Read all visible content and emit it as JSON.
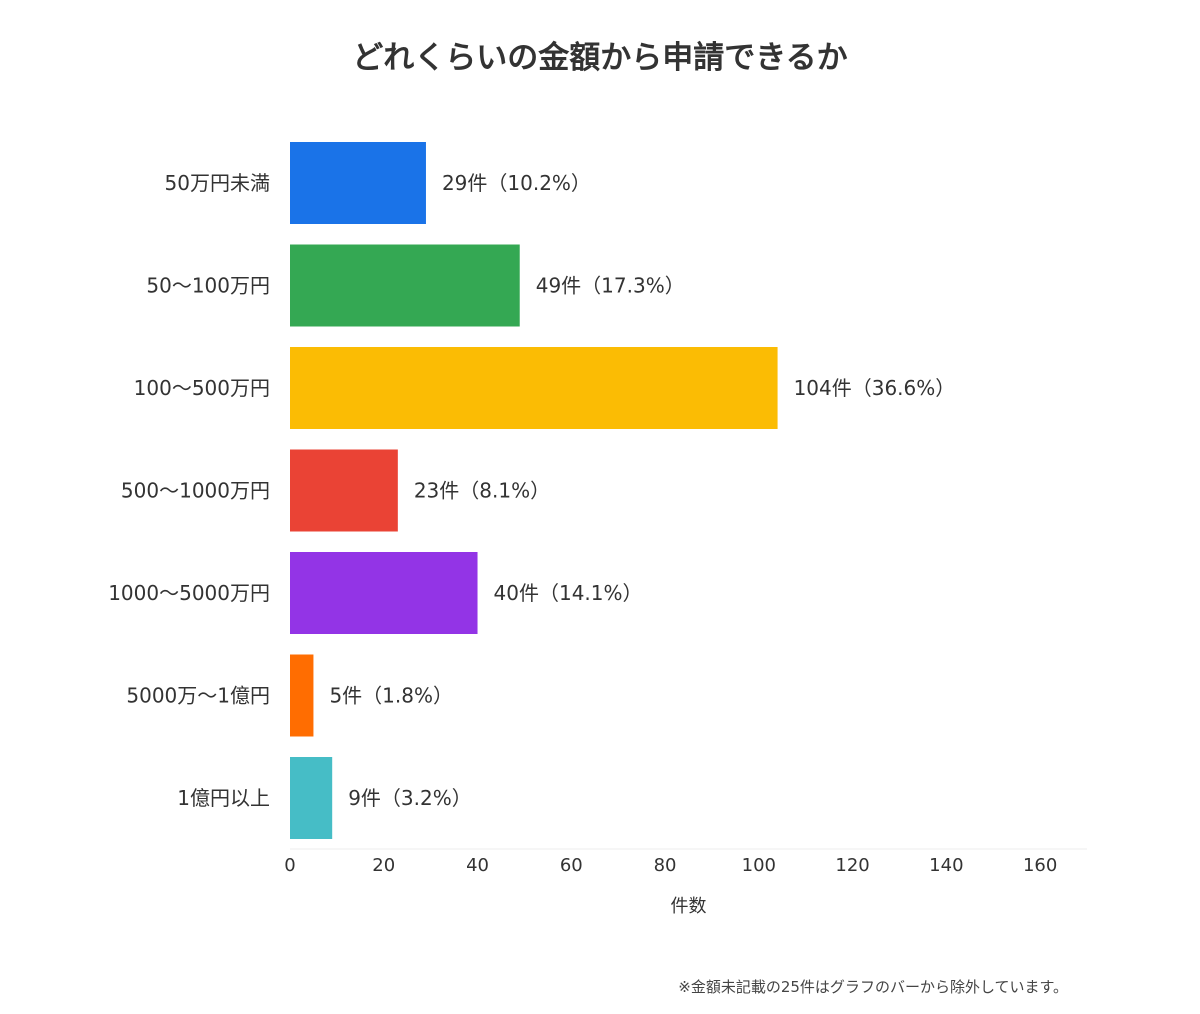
{
  "chart_data": {
    "type": "bar",
    "orientation": "horizontal",
    "title": "どれくらいの金額から申請できるか",
    "categories": [
      "50万円未満",
      "50〜100万円",
      "100〜500万円",
      "500〜1000万円",
      "1000〜5000万円",
      "5000万〜1億円",
      "1億円以上"
    ],
    "values": [
      29,
      49,
      104,
      23,
      40,
      5,
      9
    ],
    "data_labels": [
      "29件（10.2%）",
      "49件（17.3%）",
      "104件（36.6%）",
      "23件（8.1%）",
      "40件（14.1%）",
      "5件（1.8%）",
      "9件（3.2%）"
    ],
    "colors": [
      "#1a73e8",
      "#34a853",
      "#fbbc04",
      "#ea4335",
      "#9334e6",
      "#ff6d01",
      "#46bdc6"
    ],
    "xlabel": "件数",
    "ylabel": "",
    "xlim": [
      0,
      170
    ],
    "xticks": [
      0,
      20,
      40,
      60,
      80,
      100,
      120,
      140,
      160
    ],
    "grid": false,
    "legend": "none"
  },
  "note": "※金額未記載の25件はグラフのバーから除外しています。"
}
